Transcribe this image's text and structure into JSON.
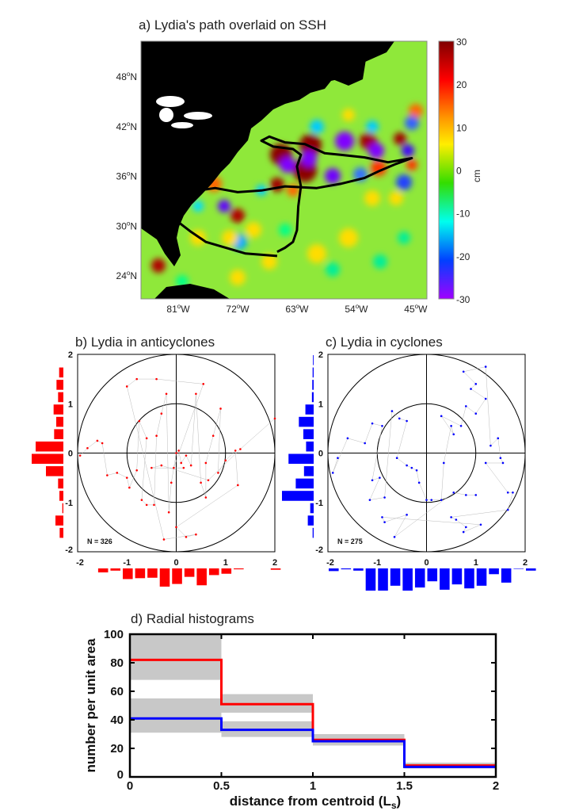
{
  "chart_data": [
    {
      "type": "heatmap",
      "title": "a) Lydia's path overlaid on SSH",
      "lat_ticks": [
        "48",
        "42",
        "36",
        "30",
        "24"
      ],
      "lat_suffix": "N",
      "lon_ticks": [
        "81",
        "72",
        "63",
        "54",
        "45"
      ],
      "lon_suffix": "W",
      "colorbar": {
        "label": "cm",
        "ticks": [
          "30",
          "20",
          "10",
          "0",
          "-10",
          "-20",
          "-30"
        ],
        "range": [
          -30,
          30
        ],
        "colors": [
          "#800000",
          "#ff0000",
          "#ff9900",
          "#ffee00",
          "#33dd00",
          "#00ffee",
          "#0040ff",
          "#a000ff"
        ]
      },
      "track_lonlat": [
        [
          -66.0,
          26.4
        ],
        [
          -70.8,
          26.7
        ],
        [
          -76.8,
          28.1
        ],
        [
          -79.2,
          29.4
        ],
        [
          -81.0,
          30.5
        ],
        [
          -80.4,
          31.3
        ],
        [
          -82.2,
          30.8
        ],
        [
          -83.4,
          31.0
        ],
        [
          -81.0,
          31.9
        ],
        [
          -79.2,
          32.9
        ],
        [
          -78.0,
          34.3
        ],
        [
          -75.4,
          34.6
        ],
        [
          -72.0,
          34.1
        ],
        [
          -68.4,
          34.3
        ],
        [
          -64.8,
          34.8
        ],
        [
          -60.0,
          34.6
        ],
        [
          -56.4,
          35.1
        ],
        [
          -52.8,
          35.8
        ],
        [
          -50.4,
          36.7
        ],
        [
          -48.0,
          37.5
        ],
        [
          -45.6,
          38.2
        ],
        [
          -49.2,
          37.7
        ],
        [
          -52.8,
          38.3
        ],
        [
          -56.4,
          38.6
        ],
        [
          -58.8,
          38.8
        ],
        [
          -61.8,
          39.9
        ],
        [
          -64.8,
          40.1
        ],
        [
          -67.2,
          40.8
        ],
        [
          -68.4,
          40.3
        ],
        [
          -66.6,
          39.6
        ],
        [
          -63.6,
          39.3
        ],
        [
          -62.4,
          38.6
        ],
        [
          -63.0,
          37.2
        ],
        [
          -62.4,
          34.8
        ],
        [
          -62.8,
          32.4
        ],
        [
          -63.0,
          29.5
        ],
        [
          -63.6,
          28.1
        ],
        [
          -64.8,
          27.4
        ],
        [
          -66.0,
          26.9
        ]
      ]
    },
    {
      "type": "scatter",
      "title": "b) Lydia in anticyclones",
      "color": "#ff0000",
      "annotation": "N = 326",
      "xlim": [
        -2,
        2
      ],
      "ylim": [
        -2,
        2
      ],
      "ticks": [
        "-2",
        "-1",
        "0",
        "1",
        "2"
      ],
      "rings": [
        1,
        2
      ],
      "points": [
        [
          -1.95,
          -0.05
        ],
        [
          -1.8,
          0.1
        ],
        [
          -1.6,
          0.25
        ],
        [
          -1.5,
          0.2
        ],
        [
          -1.4,
          -0.45
        ],
        [
          -1.2,
          -0.4
        ],
        [
          -1.0,
          -0.5
        ],
        [
          -0.95,
          -0.7
        ],
        [
          -0.8,
          -0.35
        ],
        [
          -0.75,
          0.65
        ],
        [
          -0.6,
          0.3
        ],
        [
          -0.7,
          -0.95
        ],
        [
          -0.6,
          -1.05
        ],
        [
          -0.45,
          -1.05
        ],
        [
          -0.4,
          0.35
        ],
        [
          -0.3,
          0.8
        ],
        [
          -0.2,
          1.2
        ],
        [
          -0.15,
          -1.2
        ],
        [
          -0.1,
          -0.6
        ],
        [
          0,
          0
        ],
        [
          0.05,
          0.05
        ],
        [
          0.1,
          -0.2
        ],
        [
          0.2,
          -0.05
        ],
        [
          0.3,
          -0.25
        ],
        [
          0.4,
          1.2
        ],
        [
          0.5,
          -0.6
        ],
        [
          0.6,
          -0.9
        ],
        [
          0.6,
          -0.2
        ],
        [
          0.75,
          0.35
        ],
        [
          0.9,
          0.9
        ],
        [
          0.85,
          -0.4
        ],
        [
          1.0,
          -0.15
        ],
        [
          1.2,
          0.05
        ],
        [
          1.25,
          -0.65
        ],
        [
          0,
          -1.5
        ],
        [
          0.2,
          -1.7
        ],
        [
          0.4,
          -1.65
        ],
        [
          -0.25,
          -1.75
        ],
        [
          -1.0,
          1.35
        ],
        [
          -0.8,
          1.5
        ],
        [
          -0.4,
          1.5
        ],
        [
          0.55,
          1.4
        ],
        [
          -0.05,
          -0.3
        ],
        [
          0.15,
          -0.3
        ],
        [
          -0.5,
          -0.3
        ],
        [
          -0.3,
          -0.25
        ],
        [
          0.65,
          -0.55
        ],
        [
          1.3,
          0.08
        ],
        [
          2.0,
          0.7
        ]
      ],
      "x_hist": {
        "bin_start": -1.6,
        "bin_width": 0.25,
        "relative_counts": [
          18,
          10,
          48,
          44,
          42,
          82,
          70,
          38,
          76,
          30,
          24,
          4,
          0,
          0,
          6
        ]
      },
      "y_hist": {
        "bin_start": 2,
        "bin_width": -0.25,
        "relative_counts": [
          0,
          16,
          26,
          20,
          37,
          27,
          35,
          105,
          120,
          66,
          20,
          15,
          4,
          30,
          14
        ]
      }
    },
    {
      "type": "scatter",
      "title": "c) Lydia in cyclones",
      "color": "#0000ff",
      "annotation": "N = 275",
      "xlim": [
        -2,
        2
      ],
      "ylim": [
        -2,
        2
      ],
      "ticks": [
        "-2",
        "-1",
        "0",
        "1",
        "2"
      ],
      "rings": [
        1,
        2
      ],
      "points": [
        [
          -1.8,
          -0.1
        ],
        [
          -1.9,
          -0.4
        ],
        [
          -1.6,
          0.3
        ],
        [
          -1.25,
          0.2
        ],
        [
          -1.1,
          0.6
        ],
        [
          -0.9,
          0.55
        ],
        [
          -1.1,
          -0.55
        ],
        [
          -0.95,
          -0.5
        ],
        [
          -1.15,
          -0.95
        ],
        [
          -0.85,
          -0.9
        ],
        [
          -0.7,
          0.85
        ],
        [
          -0.55,
          0.7
        ],
        [
          -0.4,
          0.65
        ],
        [
          -0.6,
          -0.1
        ],
        [
          -0.4,
          -0.25
        ],
        [
          -0.3,
          -0.3
        ],
        [
          -0.2,
          -0.35
        ],
        [
          -0.15,
          -0.6
        ],
        [
          0,
          -0.95
        ],
        [
          0.1,
          -0.95
        ],
        [
          0.3,
          -0.95
        ],
        [
          0.35,
          -0.2
        ],
        [
          0.5,
          0.55
        ],
        [
          0.55,
          0.38
        ],
        [
          0.3,
          0.75
        ],
        [
          0.7,
          0.55
        ],
        [
          0.8,
          0.95
        ],
        [
          1.0,
          0.8
        ],
        [
          1.2,
          1.1
        ],
        [
          0.9,
          1.3
        ],
        [
          1.0,
          1.4
        ],
        [
          0.75,
          1.65
        ],
        [
          1.2,
          1.75
        ],
        [
          1.3,
          0.15
        ],
        [
          1.45,
          0.3
        ],
        [
          1.5,
          -0.1
        ],
        [
          1.55,
          -0.2
        ],
        [
          1.2,
          -0.2
        ],
        [
          1.65,
          -0.8
        ],
        [
          1.75,
          -0.8
        ],
        [
          1.65,
          -1.15
        ],
        [
          0.5,
          -1.3
        ],
        [
          0.6,
          -1.35
        ],
        [
          0.8,
          -1.5
        ],
        [
          0.75,
          -1.6
        ],
        [
          1.1,
          -1.45
        ],
        [
          -0.9,
          -1.3
        ],
        [
          -0.85,
          -1.4
        ],
        [
          -0.4,
          -1.25
        ],
        [
          -0.65,
          -1.7
        ],
        [
          0.55,
          -0.8
        ],
        [
          0.8,
          -0.85
        ],
        [
          1.0,
          -0.85
        ]
      ],
      "x_hist": {
        "bin_start": -2,
        "bin_width": 0.25,
        "relative_counts": [
          12,
          4,
          10,
          100,
          100,
          78,
          100,
          86,
          58,
          96,
          72,
          90,
          78,
          26,
          64,
          2,
          10
        ]
      },
      "y_hist": {
        "bin_start": 2,
        "bin_width": -0.25,
        "relative_counts": [
          2,
          3,
          4,
          5,
          24,
          43,
          30,
          22,
          73,
          28,
          52,
          92,
          10,
          17,
          3,
          0
        ]
      }
    },
    {
      "type": "line",
      "title": "d) Radial histograms",
      "xlabel": "distance from centroid (L",
      "xlabel_sub": "s",
      "xlabel_end": ")",
      "ylabel": "number per unit area",
      "xlim": [
        0,
        2
      ],
      "ylim": [
        0,
        100
      ],
      "xticks": [
        "0",
        "0.5",
        "1",
        "1.5",
        "2"
      ],
      "yticks": [
        "0",
        "20",
        "40",
        "60",
        "80",
        "100"
      ],
      "bin_edges": [
        0,
        0.5,
        1,
        1.5,
        2
      ],
      "series": [
        {
          "color": "#ff0000",
          "values": [
            82,
            51,
            26,
            8
          ],
          "band_low": [
            68,
            45,
            23,
            6
          ],
          "band_high": [
            100,
            58,
            30,
            10
          ]
        },
        {
          "color": "#0000ff",
          "values": [
            41,
            33,
            25,
            7
          ],
          "band_low": [
            31,
            28,
            22,
            6
          ],
          "band_high": [
            55,
            39,
            30,
            9
          ]
        }
      ]
    }
  ]
}
